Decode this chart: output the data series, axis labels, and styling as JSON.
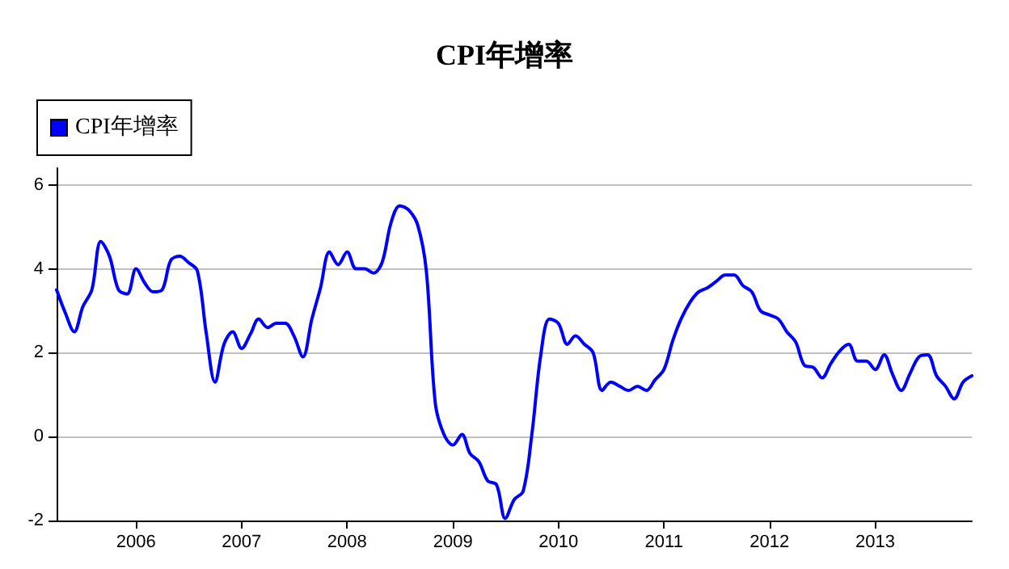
{
  "chart_data": {
    "type": "line",
    "title": "CPI年增率",
    "x": [
      "2005-04",
      "2005-05",
      "2005-06",
      "2005-07",
      "2005-08",
      "2005-09",
      "2005-10",
      "2005-11",
      "2005-12",
      "2006-01",
      "2006-02",
      "2006-03",
      "2006-04",
      "2006-05",
      "2006-06",
      "2006-07",
      "2006-08",
      "2006-09",
      "2006-10",
      "2006-11",
      "2006-12",
      "2007-01",
      "2007-02",
      "2007-03",
      "2007-04",
      "2007-05",
      "2007-06",
      "2007-07",
      "2007-08",
      "2007-09",
      "2007-10",
      "2007-11",
      "2007-12",
      "2008-01",
      "2008-02",
      "2008-03",
      "2008-04",
      "2008-05",
      "2008-06",
      "2008-07",
      "2008-08",
      "2008-09",
      "2008-10",
      "2008-11",
      "2008-12",
      "2009-01",
      "2009-02",
      "2009-03",
      "2009-04",
      "2009-05",
      "2009-06",
      "2009-07",
      "2009-08",
      "2009-09",
      "2009-10",
      "2009-11",
      "2009-12",
      "2010-01",
      "2010-02",
      "2010-03",
      "2010-04",
      "2010-05",
      "2010-06",
      "2010-07",
      "2010-08",
      "2010-09",
      "2010-10",
      "2010-11",
      "2010-12",
      "2011-01",
      "2011-02",
      "2011-03",
      "2011-04",
      "2011-05",
      "2011-06",
      "2011-07",
      "2011-08",
      "2011-09",
      "2011-10",
      "2011-11",
      "2011-12",
      "2012-01",
      "2012-02",
      "2012-03",
      "2012-04",
      "2012-05",
      "2012-06",
      "2012-07",
      "2012-08",
      "2012-09",
      "2012-10",
      "2012-11",
      "2012-12",
      "2013-01",
      "2013-02",
      "2013-03",
      "2013-04",
      "2013-05",
      "2013-06",
      "2013-07",
      "2013-08",
      "2013-09",
      "2013-10",
      "2013-11",
      "2013-12"
    ],
    "series": [
      {
        "name": "CPI年增率",
        "color": "#0000ff",
        "values": [
          3.5,
          2.95,
          2.5,
          3.1,
          3.5,
          4.65,
          4.3,
          3.5,
          3.4,
          4.0,
          3.65,
          3.45,
          3.5,
          4.2,
          4.3,
          4.15,
          3.95,
          2.45,
          1.3,
          2.2,
          2.5,
          2.1,
          2.45,
          2.8,
          2.6,
          2.7,
          2.7,
          2.4,
          1.9,
          2.8,
          3.55,
          4.4,
          4.1,
          4.4,
          4.0,
          4.0,
          3.9,
          4.15,
          5.1,
          5.5,
          5.4,
          5.05,
          3.95,
          0.8,
          0.05,
          -0.2,
          0.05,
          -0.4,
          -0.6,
          -1.05,
          -1.15,
          -1.95,
          -1.5,
          -1.3,
          0.05,
          1.95,
          2.8,
          2.7,
          2.2,
          2.4,
          2.2,
          2.0,
          1.1,
          1.3,
          1.2,
          1.1,
          1.2,
          1.1,
          1.35,
          1.6,
          2.3,
          2.8,
          3.2,
          3.45,
          3.55,
          3.7,
          3.85,
          3.85,
          3.6,
          3.45,
          3.0,
          2.9,
          2.8,
          2.5,
          2.25,
          1.7,
          1.65,
          1.4,
          1.75,
          2.05,
          2.2,
          1.8,
          1.8,
          1.6,
          1.95,
          1.5,
          1.1,
          1.5,
          1.9,
          1.95,
          1.45,
          1.2,
          0.9,
          1.3,
          1.45
        ]
      }
    ],
    "xlim": [
      "2005-04",
      "2013-12"
    ],
    "xticks": [
      {
        "value": "2006",
        "label": "2006"
      },
      {
        "value": "2007",
        "label": "2007"
      },
      {
        "value": "2008",
        "label": "2008"
      },
      {
        "value": "2009",
        "label": "2009"
      },
      {
        "value": "2010",
        "label": "2010"
      },
      {
        "value": "2011",
        "label": "2011"
      },
      {
        "value": "2012",
        "label": "2012"
      },
      {
        "value": "2013",
        "label": "2013"
      }
    ],
    "ylim": [
      -2,
      6.4
    ],
    "yticks": [
      -2,
      0,
      2,
      4,
      6
    ],
    "grid": "y",
    "legend": "top left",
    "marker": "none",
    "line_style": "solid"
  }
}
